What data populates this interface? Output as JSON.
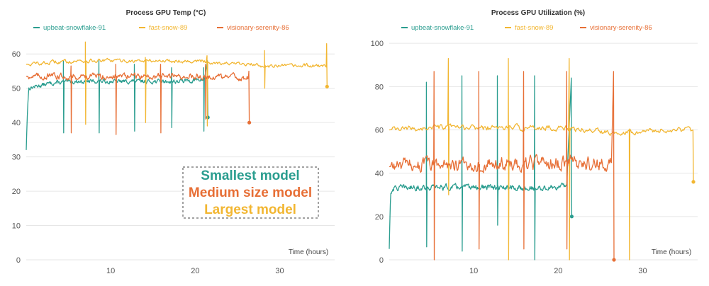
{
  "legend": [
    {
      "name": "upbeat-snowflake-91",
      "color": "#2a9d8f"
    },
    {
      "name": "fast-snow-89",
      "color": "#f2b631"
    },
    {
      "name": "visionary-serenity-86",
      "color": "#e76f36"
    }
  ],
  "annotation": {
    "lines": [
      {
        "text": "Smallest model",
        "color": "#2a9d8f"
      },
      {
        "text": "Medium size model",
        "color": "#e76f36"
      },
      {
        "text": "Largest model",
        "color": "#f2b631"
      }
    ]
  },
  "chart_data": [
    {
      "type": "line",
      "title": "Process GPU Temp (°C)",
      "xlabel": "Time (hours)",
      "ylabel": "",
      "xlim": [
        0,
        36.5
      ],
      "ylim": [
        0,
        65
      ],
      "xticks": [
        10,
        20,
        30
      ],
      "yticks": [
        0,
        10,
        20,
        30,
        40,
        50,
        60
      ],
      "grid": true,
      "legend_position": "top",
      "series": [
        {
          "name": "upbeat-snowflake-91",
          "color": "#2a9d8f",
          "baseline": [
            [
              0,
              32
            ],
            [
              0.15,
              44
            ],
            [
              0.3,
              50
            ],
            [
              1,
              50.5
            ],
            [
              3,
              51.5
            ],
            [
              6,
              52
            ],
            [
              10,
              52
            ],
            [
              14,
              52
            ],
            [
              18,
              52
            ],
            [
              21,
              52.5
            ]
          ],
          "spikes": [
            [
              4.4,
              58,
              37
            ],
            [
              8.6,
              58,
              37
            ],
            [
              12.8,
              57,
              37.5
            ],
            [
              17.2,
              56,
              38.5
            ],
            [
              21,
              56,
              37.5
            ]
          ],
          "end": [
            21.5,
            41.5
          ],
          "end_high": 58,
          "noise": 0.6
        },
        {
          "name": "fast-snow-89",
          "color": "#f2b631",
          "baseline": [
            [
              0,
              57
            ],
            [
              3,
              57.5
            ],
            [
              6,
              58
            ],
            [
              10,
              58
            ],
            [
              15,
              58
            ],
            [
              20,
              58
            ],
            [
              25,
              57
            ],
            [
              30,
              56.5
            ],
            [
              35.5,
              56.5
            ]
          ],
          "spikes": [
            [
              7,
              63.5,
              39.5
            ],
            [
              14.1,
              59,
              40
            ],
            [
              21.4,
              59.5,
              39
            ],
            [
              28.2,
              61,
              50
            ]
          ],
          "end": [
            35.6,
            50.5
          ],
          "end_high": 63,
          "noise": 0.6
        },
        {
          "name": "visionary-serenity-86",
          "color": "#e76f36",
          "baseline": [
            [
              0,
              53.5
            ],
            [
              3,
              53.5
            ],
            [
              6,
              53.5
            ],
            [
              10,
              53.5
            ],
            [
              15,
              53.5
            ],
            [
              20,
              53.5
            ],
            [
              26.3,
              53
            ]
          ],
          "spikes": [
            [
              5.3,
              56.5,
              37
            ],
            [
              10.6,
              57,
              36.5
            ],
            [
              15.9,
              57,
              37
            ],
            [
              21.2,
              57,
              41
            ]
          ],
          "end": [
            26.4,
            40
          ],
          "end_high": 55,
          "noise": 0.9
        }
      ]
    },
    {
      "type": "line",
      "title": "Process GPU Utilization (%)",
      "xlabel": "Time (hours)",
      "ylabel": "",
      "xlim": [
        0,
        36.5
      ],
      "ylim": [
        0,
        103
      ],
      "xticks": [
        10,
        20,
        30
      ],
      "yticks": [
        0,
        20,
        40,
        60,
        80,
        100
      ],
      "grid": true,
      "legend_position": "top",
      "series": [
        {
          "name": "upbeat-snowflake-91",
          "color": "#2a9d8f",
          "baseline": [
            [
              0,
              5
            ],
            [
              0.15,
              30
            ],
            [
              0.4,
              33
            ],
            [
              3,
              33.5
            ],
            [
              6,
              33.5
            ],
            [
              10,
              33.5
            ],
            [
              15,
              33
            ],
            [
              18,
              33
            ],
            [
              21,
              34
            ]
          ],
          "spikes": [
            [
              4.4,
              82,
              6
            ],
            [
              8.6,
              85,
              4
            ],
            [
              12.8,
              85,
              16
            ],
            [
              17.2,
              85,
              0
            ]
          ],
          "end": [
            21.6,
            20
          ],
          "end_high": 84,
          "noise": 1.3
        },
        {
          "name": "fast-snow-89",
          "color": "#f2b631",
          "baseline": [
            [
              0,
              60
            ],
            [
              5,
              61
            ],
            [
              10,
              61
            ],
            [
              15,
              61
            ],
            [
              20,
              61
            ],
            [
              23,
              60
            ],
            [
              26,
              59
            ],
            [
              30,
              59.5
            ],
            [
              35.7,
              60
            ]
          ],
          "spikes": [
            [
              7,
              93,
              30
            ],
            [
              14.1,
              93,
              0
            ],
            [
              21.3,
              93,
              0
            ],
            [
              28.4,
              60,
              0
            ]
          ],
          "end": [
            36,
            36
          ],
          "end_high": 60,
          "noise": 1.3
        },
        {
          "name": "visionary-serenity-86",
          "color": "#e76f36",
          "baseline": [
            [
              0,
              43
            ],
            [
              3,
              44
            ],
            [
              6,
              44
            ],
            [
              10,
              44
            ],
            [
              15,
              44
            ],
            [
              20,
              44.5
            ],
            [
              22,
              45
            ],
            [
              26.3,
              44
            ]
          ],
          "spikes": [
            [
              5.3,
              87,
              0
            ],
            [
              10.6,
              87,
              5
            ],
            [
              15.9,
              87,
              5
            ],
            [
              21,
              87,
              5
            ]
          ],
          "end": [
            26.6,
            0
          ],
          "end_high": 87,
          "noise": 3.2
        }
      ]
    }
  ]
}
